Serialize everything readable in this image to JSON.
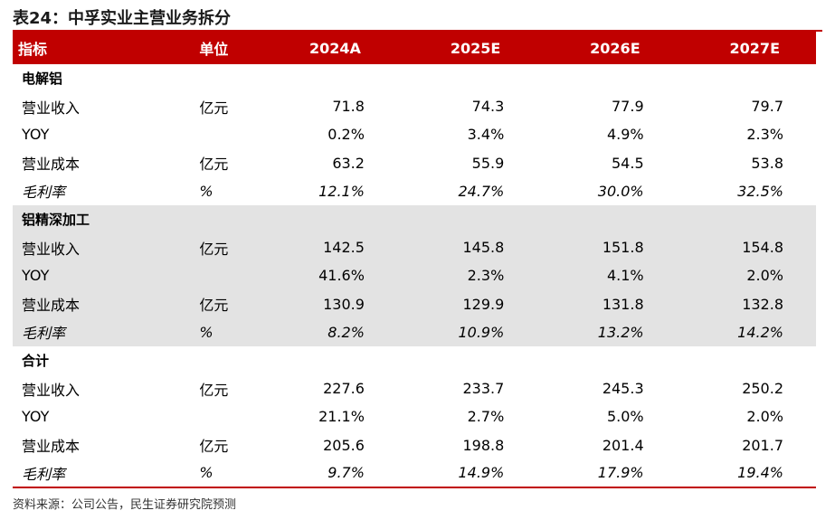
{
  "title": "表24：中孚实业主营业务拆分",
  "header": [
    "指标",
    "单位",
    "2024A",
    "2025E",
    "2026E",
    "2027E"
  ],
  "sections": [
    {
      "name": "电解铝",
      "shaded": false,
      "rows": [
        {
          "label": "营业收入",
          "unit": "亿元",
          "values": [
            "71.8",
            "74.3",
            "77.9",
            "79.7"
          ]
        },
        {
          "label": "YOY",
          "unit": "",
          "values": [
            "0.2%",
            "3.4%",
            "4.9%",
            "2.3%"
          ]
        },
        {
          "label": "营业成本",
          "unit": "亿元",
          "values": [
            "63.2",
            "55.9",
            "54.5",
            "53.8"
          ]
        },
        {
          "label": "毛利率",
          "unit": "%",
          "values": [
            "12.1%",
            "24.7%",
            "30.0%",
            "32.5%"
          ],
          "italic": true
        }
      ]
    },
    {
      "name": "铝精深加工",
      "shaded": true,
      "rows": [
        {
          "label": "营业收入",
          "unit": "亿元",
          "values": [
            "142.5",
            "145.8",
            "151.8",
            "154.8"
          ]
        },
        {
          "label": "YOY",
          "unit": "",
          "values": [
            "41.6%",
            "2.3%",
            "4.1%",
            "2.0%"
          ]
        },
        {
          "label": "营业成本",
          "unit": "亿元",
          "values": [
            "130.9",
            "129.9",
            "131.8",
            "132.8"
          ]
        },
        {
          "label": "毛利率",
          "unit": "%",
          "values": [
            "8.2%",
            "10.9%",
            "13.2%",
            "14.2%"
          ],
          "italic": true
        }
      ]
    },
    {
      "name": "合计",
      "shaded": false,
      "rows": [
        {
          "label": "营业收入",
          "unit": "亿元",
          "values": [
            "227.6",
            "233.7",
            "245.3",
            "250.2"
          ]
        },
        {
          "label": "YOY",
          "unit": "",
          "values": [
            "21.1%",
            "2.7%",
            "5.0%",
            "2.0%"
          ]
        },
        {
          "label": "营业成本",
          "unit": "亿元",
          "values": [
            "205.6",
            "198.8",
            "201.4",
            "201.7"
          ]
        },
        {
          "label": "毛利率",
          "unit": "%",
          "values": [
            "9.7%",
            "14.9%",
            "17.9%",
            "19.4%"
          ],
          "italic": true
        }
      ]
    }
  ],
  "source": "资料来源：公司公告，民生证券研究院预测",
  "colors": {
    "accent": "#c00000",
    "shade": "#e3e3e3"
  }
}
